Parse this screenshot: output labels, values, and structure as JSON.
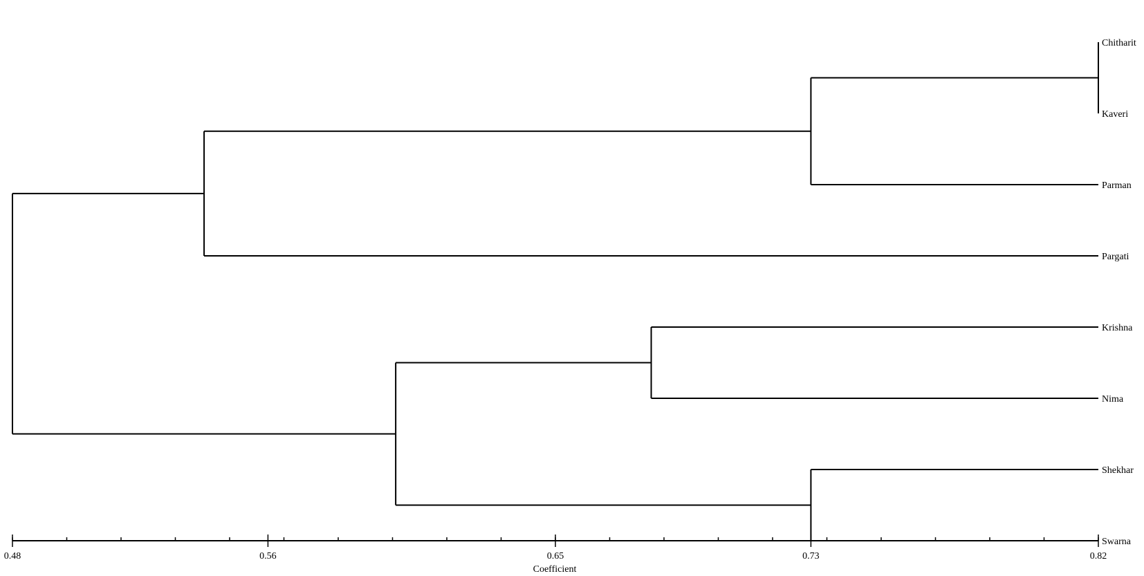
{
  "chart_data": {
    "type": "dendrogram",
    "title": "",
    "xlabel": "Coefficient",
    "ylabel": "",
    "xlim": [
      0.48,
      0.82
    ],
    "axis_ticks": [
      {
        "value": 0.48,
        "label": "0.48"
      },
      {
        "value": 0.56,
        "label": "0.56"
      },
      {
        "value": 0.65,
        "label": "0.65"
      },
      {
        "value": 0.73,
        "label": "0.73"
      },
      {
        "value": 0.82,
        "label": "0.82"
      }
    ],
    "leaves": [
      "Chitharit",
      "Kaveri",
      "Parman",
      "Pargati",
      "Krishna",
      "Nima",
      "Shekhar",
      "Swarna"
    ],
    "tree": {
      "height": 0.48,
      "children": [
        {
          "height": 0.54,
          "children": [
            {
              "height": 0.73,
              "children": [
                {
                  "height": 0.82,
                  "children": [
                    {
                      "leaf": "Chitharit"
                    },
                    {
                      "leaf": "Kaveri"
                    }
                  ]
                },
                {
                  "leaf": "Parman"
                }
              ]
            },
            {
              "leaf": "Pargati"
            }
          ]
        },
        {
          "height": 0.6,
          "children": [
            {
              "height": 0.68,
              "children": [
                {
                  "leaf": "Krishna"
                },
                {
                  "leaf": "Nima"
                }
              ]
            },
            {
              "height": 0.73,
              "children": [
                {
                  "leaf": "Shekhar"
                },
                {
                  "leaf": "Swarna"
                }
              ]
            }
          ]
        }
      ]
    }
  }
}
